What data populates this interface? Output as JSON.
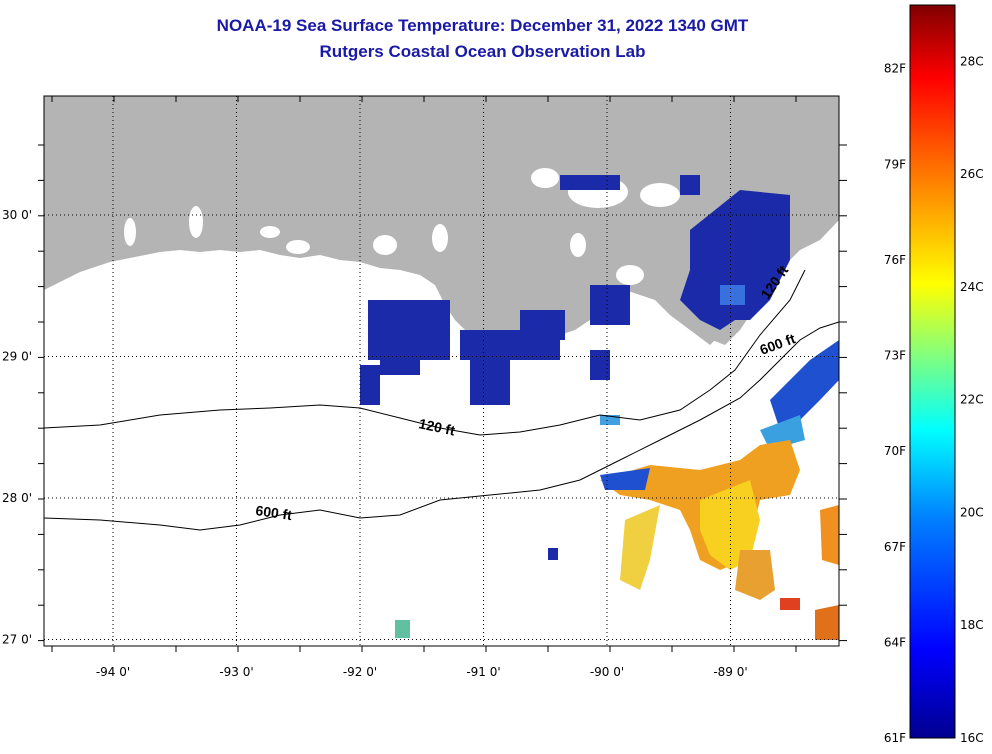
{
  "title": {
    "line1": "NOAA-19 Sea Surface Temperature:  December 31, 2022 1340 GMT",
    "line2": "Rutgers Coastal Ocean Observation Lab"
  },
  "map": {
    "longitude_ticks": [
      {
        "label": "-94 0'",
        "lon": -94
      },
      {
        "label": "-93 0'",
        "lon": -93
      },
      {
        "label": "-92 0'",
        "lon": -92
      },
      {
        "label": "-91 0'",
        "lon": -91
      },
      {
        "label": "-90 0'",
        "lon": -90
      },
      {
        "label": "-89 0'",
        "lon": -89
      }
    ],
    "latitude_ticks": [
      {
        "label": "30 0'",
        "lat": 30
      },
      {
        "label": "29 0'",
        "lat": 29
      },
      {
        "label": "28 0'",
        "lat": 28
      },
      {
        "label": "27 0'",
        "lat": 27
      }
    ],
    "contour_labels": [
      {
        "text": "120 ft",
        "isobath": "120 ft"
      },
      {
        "text": "600 ft",
        "isobath": "600 ft"
      },
      {
        "text": "120 ft",
        "isobath": "120 ft"
      },
      {
        "text": "600 ft",
        "isobath": "600 ft"
      }
    ],
    "colors": {
      "land": "#b4b4b4",
      "ocean_nodata": "#ffffff",
      "cold": "#1b2aa8",
      "warm": "#f0c020",
      "hot": "#e05010"
    }
  },
  "colorbar": {
    "fahrenheit": [
      "82F",
      "79F",
      "76F",
      "73F",
      "70F",
      "67F",
      "64F",
      "61F"
    ],
    "celsius": [
      "28C",
      "26C",
      "24C",
      "22C",
      "20C",
      "18C",
      "16C"
    ],
    "range_f": [
      61,
      84
    ],
    "range_c": [
      16,
      29
    ],
    "colors": [
      "#00008f",
      "#0000ff",
      "#0080ff",
      "#00ffff",
      "#80ff80",
      "#ffff00",
      "#ff8000",
      "#ff0000",
      "#800000"
    ]
  }
}
